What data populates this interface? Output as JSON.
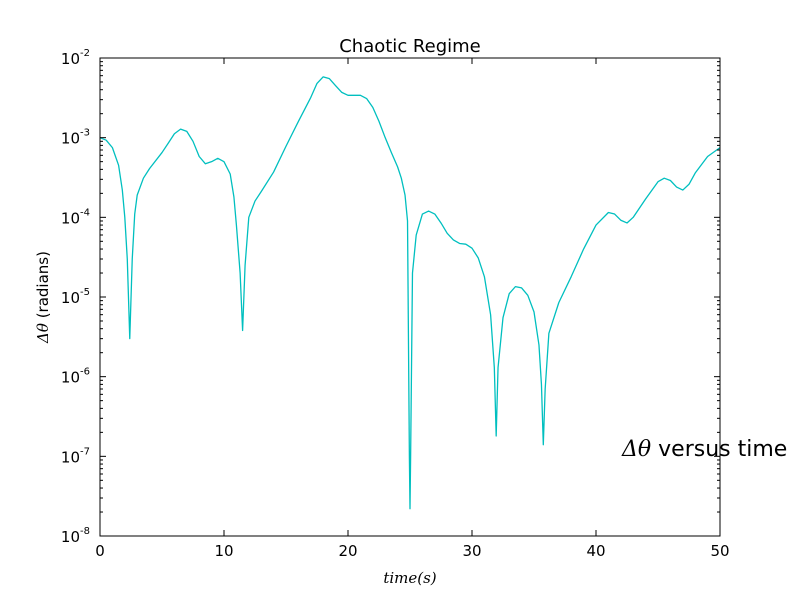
{
  "chart_data": {
    "type": "line",
    "title": "Chaotic Regime",
    "xlabel": "time(s)",
    "ylabel_symbol": "Δθ",
    "ylabel_unit": "(radians)",
    "annotation_symbol": "Δθ",
    "annotation_text": "versus time",
    "xlim": [
      0,
      50
    ],
    "ylim": [
      1e-08,
      0.01
    ],
    "yscale": "log",
    "grid": false,
    "x_ticks": [
      "0",
      "10",
      "20",
      "30",
      "40",
      "50"
    ],
    "y_ticks": [
      {
        "base": "10",
        "exp": "-8"
      },
      {
        "base": "10",
        "exp": "-7"
      },
      {
        "base": "10",
        "exp": "-6"
      },
      {
        "base": "10",
        "exp": "-5"
      },
      {
        "base": "10",
        "exp": "-4"
      },
      {
        "base": "10",
        "exp": "-3"
      },
      {
        "base": "10",
        "exp": "-2"
      }
    ],
    "series": [
      {
        "color": "#00bfbf",
        "points": [
          [
            0,
            0.001
          ],
          [
            0.5,
            0.00093
          ],
          [
            1.0,
            0.00075
          ],
          [
            1.5,
            0.00045
          ],
          [
            1.8,
            0.00022
          ],
          [
            2.0,
            0.0001
          ],
          [
            2.2,
            3e-05
          ],
          [
            2.4,
            3e-06
          ],
          [
            2.6,
            3e-05
          ],
          [
            2.8,
            0.00011
          ],
          [
            3.0,
            0.00019
          ],
          [
            3.5,
            0.00031
          ],
          [
            4.0,
            0.00041
          ],
          [
            5.0,
            0.00065
          ],
          [
            5.5,
            0.00085
          ],
          [
            6.0,
            0.00112
          ],
          [
            6.5,
            0.00128
          ],
          [
            7.0,
            0.0012
          ],
          [
            7.5,
            0.0009
          ],
          [
            8.0,
            0.00058
          ],
          [
            8.5,
            0.00047
          ],
          [
            9.0,
            0.0005
          ],
          [
            9.5,
            0.00055
          ],
          [
            10.0,
            0.0005
          ],
          [
            10.5,
            0.00035
          ],
          [
            10.8,
            0.00018
          ],
          [
            11.0,
            8e-05
          ],
          [
            11.3,
            2e-05
          ],
          [
            11.5,
            3.8e-06
          ],
          [
            11.7,
            2.5e-05
          ],
          [
            12.0,
            0.0001
          ],
          [
            12.5,
            0.00016
          ],
          [
            13.0,
            0.00021
          ],
          [
            14.0,
            0.00037
          ],
          [
            15.0,
            0.00078
          ],
          [
            16.0,
            0.0016
          ],
          [
            17.0,
            0.0032
          ],
          [
            17.5,
            0.0048
          ],
          [
            18.0,
            0.0058
          ],
          [
            18.5,
            0.0055
          ],
          [
            19.0,
            0.0045
          ],
          [
            19.5,
            0.0037
          ],
          [
            20.0,
            0.0034
          ],
          [
            21.0,
            0.0034
          ],
          [
            21.5,
            0.0031
          ],
          [
            22.0,
            0.0024
          ],
          [
            22.5,
            0.0016
          ],
          [
            23.0,
            0.001
          ],
          [
            23.5,
            0.00065
          ],
          [
            24.0,
            0.00043
          ],
          [
            24.3,
            0.00031
          ],
          [
            24.6,
            0.00019
          ],
          [
            24.8,
            9e-05
          ],
          [
            24.95,
            1e-07
          ],
          [
            25.0,
            2.2e-08
          ],
          [
            25.05,
            1e-07
          ],
          [
            25.2,
            2e-05
          ],
          [
            25.5,
            6e-05
          ],
          [
            26.0,
            0.00011
          ],
          [
            26.5,
            0.00012
          ],
          [
            27.0,
            0.00011
          ],
          [
            27.5,
            8.5e-05
          ],
          [
            28.0,
            6.3e-05
          ],
          [
            28.5,
            5.2e-05
          ],
          [
            29.0,
            4.7e-05
          ],
          [
            29.5,
            4.6e-05
          ],
          [
            30.0,
            4.1e-05
          ],
          [
            30.5,
            3.1e-05
          ],
          [
            31.0,
            1.8e-05
          ],
          [
            31.5,
            6e-06
          ],
          [
            31.8,
            1.3e-06
          ],
          [
            31.95,
            1.8e-07
          ],
          [
            32.1,
            1.3e-06
          ],
          [
            32.5,
            5.5e-06
          ],
          [
            33.0,
            1.1e-05
          ],
          [
            33.5,
            1.35e-05
          ],
          [
            34.0,
            1.3e-05
          ],
          [
            34.5,
            1.05e-05
          ],
          [
            35.0,
            6.5e-06
          ],
          [
            35.4,
            2.5e-06
          ],
          [
            35.6,
            8e-07
          ],
          [
            35.75,
            1.4e-07
          ],
          [
            35.9,
            7e-07
          ],
          [
            36.2,
            3.5e-06
          ],
          [
            37.0,
            8.5e-06
          ],
          [
            38.0,
            1.8e-05
          ],
          [
            39.0,
            4e-05
          ],
          [
            40.0,
            8e-05
          ],
          [
            41.0,
            0.000115
          ],
          [
            41.5,
            0.00011
          ],
          [
            42.0,
            9.2e-05
          ],
          [
            42.5,
            8.5e-05
          ],
          [
            43.0,
            0.0001
          ],
          [
            44.0,
            0.00017
          ],
          [
            45.0,
            0.00028
          ],
          [
            45.5,
            0.00031
          ],
          [
            46.0,
            0.00029
          ],
          [
            46.5,
            0.00024
          ],
          [
            47.0,
            0.00022
          ],
          [
            47.5,
            0.00026
          ],
          [
            48.0,
            0.00036
          ],
          [
            49.0,
            0.00058
          ],
          [
            50.0,
            0.00075
          ]
        ]
      }
    ]
  }
}
